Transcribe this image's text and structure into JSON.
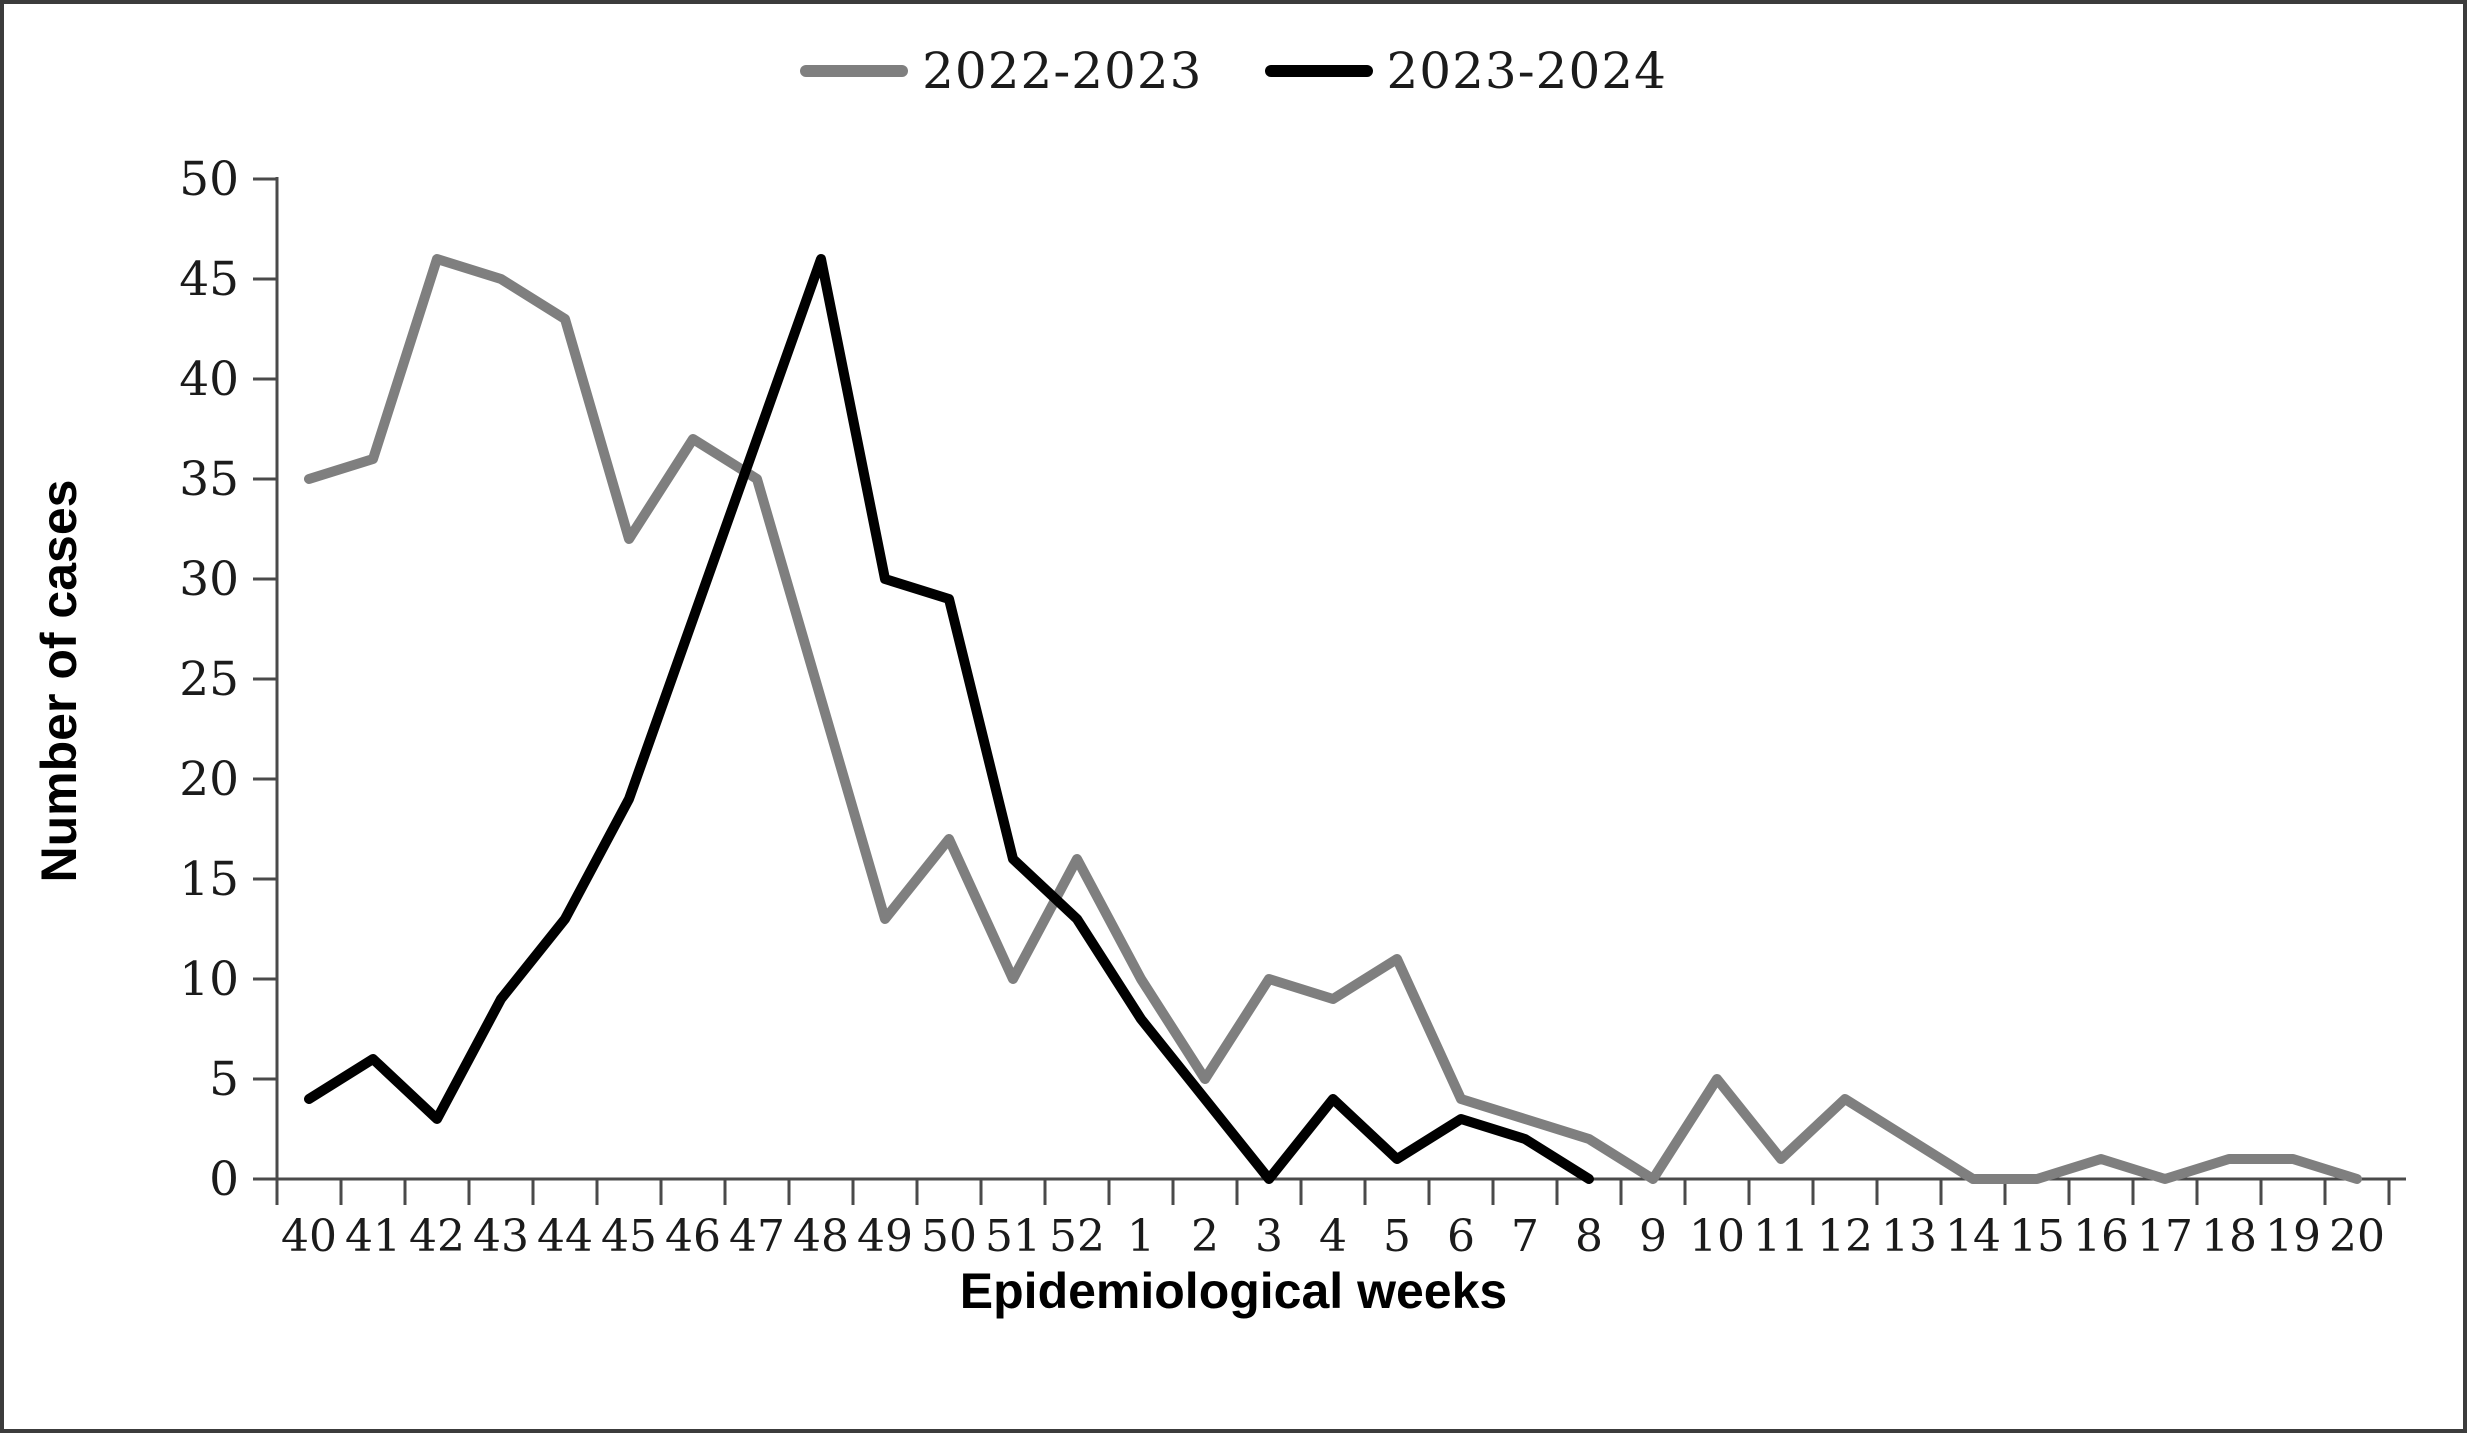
{
  "figure": {
    "background": "#ffffff",
    "border_color": "#3c3c3c",
    "axis_color": "#4a4a4a",
    "text_color": "#1b1b1b"
  },
  "chart_data": {
    "type": "line",
    "title": "",
    "xlabel": "Epidemiological weeks",
    "ylabel": "Number of cases",
    "categories": [
      "40",
      "41",
      "42",
      "43",
      "44",
      "45",
      "46",
      "47",
      "48",
      "49",
      "50",
      "51",
      "52",
      "1",
      "2",
      "3",
      "4",
      "5",
      "6",
      "7",
      "8",
      "9",
      "10",
      "11",
      "12",
      "13",
      "14",
      "15",
      "16",
      "17",
      "18",
      "19",
      "20"
    ],
    "series": [
      {
        "name": "2022-2023",
        "color": "#7f7f7f",
        "values": [
          35,
          36,
          46,
          45,
          43,
          32,
          37,
          35,
          24,
          13,
          17,
          10,
          16,
          10,
          5,
          10,
          9,
          11,
          4,
          3,
          2,
          0,
          5,
          1,
          4,
          2,
          0,
          0,
          1,
          0,
          1,
          1,
          0
        ]
      },
      {
        "name": "2023-2024",
        "color": "#000000",
        "values": [
          4,
          6,
          3,
          9,
          13,
          19,
          28,
          37,
          46,
          30,
          29,
          16,
          13,
          8,
          4,
          0,
          4,
          1,
          3,
          2,
          0
        ]
      }
    ],
    "ylim": [
      0,
      50
    ],
    "y_ticks": [
      0,
      5,
      10,
      15,
      20,
      25,
      30,
      35,
      40,
      45,
      50
    ],
    "grid": false,
    "legend_position": "top-center",
    "line_width": 10
  }
}
